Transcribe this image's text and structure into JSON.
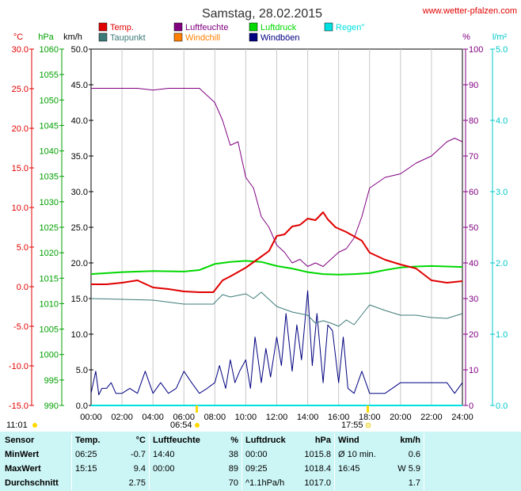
{
  "title": "Samstag, 28.02.2015",
  "website": "www.wetter-pfalzen.com",
  "colors": {
    "temp": "#e00000",
    "dewpoint": "#3c7a78",
    "humidity": "#800080",
    "windchill": "#ff8000",
    "pressure": "#00d800",
    "gusts": "#000080",
    "rain": "#00e0e0",
    "background": "#ffffff",
    "grid": "#c8c8c8",
    "stats_bg": "#ccf5f5"
  },
  "legend": [
    {
      "label": "Temp.",
      "color": "#e00000"
    },
    {
      "label": "Luftfeuchte",
      "color": "#800080"
    },
    {
      "label": "Luftdruck",
      "color": "#00d800"
    },
    {
      "label": "Regen\"",
      "color": "#00e0e0"
    },
    {
      "label": "Taupunkt",
      "color": "#3c7a78"
    },
    {
      "label": "Windchill",
      "color": "#ff8000"
    },
    {
      "label": "Windböen",
      "color": "#000080"
    }
  ],
  "axis_units": {
    "temp": "°C",
    "pressure": "hPa",
    "wind": "km/h",
    "humidity": "%",
    "rain": "l/m²"
  },
  "sun": {
    "sunrise": "06:54",
    "sunset": "17:55",
    "daylength": "11:01"
  },
  "chart_data": {
    "type": "line",
    "title": "Samstag, 28.02.2015",
    "x_ticks": [
      "00:00",
      "02:00",
      "04:00",
      "06:00",
      "08:00",
      "10:00",
      "12:00",
      "14:00",
      "16:00",
      "18:00",
      "20:00",
      "22:00",
      "24:00"
    ],
    "axes": {
      "temp": {
        "label": "°C",
        "ylim": [
          -15,
          30
        ],
        "ticks": [
          "30.0",
          "25.0",
          "20.0",
          "15.0",
          "10.0",
          "5.0",
          "0.0",
          "-5.0",
          "-10.0",
          "-15.0"
        ]
      },
      "pressure": {
        "label": "hPa",
        "ylim": [
          990,
          1060
        ],
        "ticks": [
          "1060",
          "1055",
          "1050",
          "1045",
          "1040",
          "1035",
          "1030",
          "1025",
          "1020",
          "1015",
          "1010",
          "1005",
          "1000",
          "995",
          "990"
        ]
      },
      "wind": {
        "label": "km/h",
        "ylim": [
          0,
          50
        ],
        "ticks": [
          "50.0",
          "45.0",
          "40.0",
          "35.0",
          "30.0",
          "25.0",
          "20.0",
          "15.0",
          "10.0",
          "5.0",
          "0.0"
        ]
      },
      "humidity": {
        "label": "%",
        "ylim": [
          0,
          100
        ],
        "ticks": [
          "100",
          "90",
          "80",
          "70",
          "60",
          "50",
          "40",
          "30",
          "20",
          "10",
          "0"
        ]
      },
      "rain": {
        "label": "l/m²",
        "ylim": [
          0,
          5
        ],
        "ticks": [
          "5.0",
          "4.0",
          "3.0",
          "2.0",
          "1.0",
          "0.0"
        ]
      }
    },
    "series": [
      {
        "name": "Temp.",
        "axis": "temp",
        "x": [
          0,
          1,
          2,
          3,
          4,
          5,
          6,
          7,
          7.9,
          8.5,
          9,
          10,
          11,
          11.5,
          12,
          12.5,
          13,
          13.5,
          14,
          14.5,
          15,
          15.3,
          15.8,
          16.5,
          17.5,
          18,
          19,
          20,
          21,
          22,
          23,
          24
        ],
        "y": [
          0.3,
          0.3,
          0.5,
          0.8,
          -0.1,
          -0.3,
          -0.6,
          -0.7,
          -0.7,
          0.8,
          1.3,
          2.4,
          3.8,
          4.5,
          6.4,
          6.6,
          7.6,
          7.8,
          8.6,
          8.4,
          9.4,
          8.5,
          7.5,
          6.9,
          5.8,
          4.3,
          3.4,
          2.8,
          2.3,
          0.8,
          0.5,
          0.7
        ]
      },
      {
        "name": "Taupunkt",
        "axis": "temp",
        "x": [
          0,
          2,
          4,
          6,
          7.9,
          8.5,
          9,
          10,
          10.5,
          11,
          12,
          13,
          14,
          14.5,
          15,
          15.5,
          16,
          16.5,
          17,
          18,
          19,
          20,
          21,
          22,
          23,
          24
        ],
        "y": [
          -1.5,
          -1.6,
          -1.7,
          -2.2,
          -2.2,
          -1.0,
          -1.3,
          -0.9,
          -1.5,
          -0.7,
          -2.5,
          -3.2,
          -3.6,
          -4.6,
          -4.3,
          -4.6,
          -5.0,
          -4.2,
          -4.8,
          -2.3,
          -3.0,
          -3.6,
          -3.6,
          -3.9,
          -4.0,
          -3.4
        ]
      },
      {
        "name": "Luftfeuchte",
        "axis": "humidity",
        "x": [
          0,
          1,
          2,
          3,
          4,
          5,
          6,
          7,
          8,
          8.5,
          9,
          9.5,
          10,
          10.5,
          11,
          11.5,
          12,
          12.5,
          13,
          13.5,
          14,
          14.5,
          15,
          15.5,
          16,
          16.5,
          17,
          17.5,
          18,
          19,
          20,
          21,
          22,
          23,
          23.5,
          24
        ],
        "y": [
          89,
          89,
          89,
          89,
          88.5,
          89,
          89,
          89,
          85,
          80,
          73,
          74,
          64,
          61,
          53,
          50,
          45,
          43,
          40,
          41,
          39,
          40,
          39,
          41,
          43,
          44,
          47,
          53,
          61,
          64,
          65,
          68,
          70,
          74,
          75,
          74
        ]
      },
      {
        "name": "Luftdruck",
        "axis": "pressure",
        "x": [
          0,
          2,
          4,
          6,
          7,
          8,
          9,
          10,
          11,
          12,
          13,
          14,
          15,
          16,
          17,
          18,
          19,
          20,
          21,
          22,
          23,
          24
        ],
        "y": [
          1015.8,
          1016.2,
          1016.4,
          1016.3,
          1016.6,
          1017.8,
          1018.2,
          1018.4,
          1018.2,
          1017.4,
          1016.9,
          1016.2,
          1015.8,
          1015.7,
          1015.8,
          1016.0,
          1016.6,
          1017.1,
          1017.3,
          1017.4,
          1017.3,
          1017.2
        ]
      },
      {
        "name": "Windböen",
        "axis": "wind",
        "x": [
          0,
          0.3,
          0.5,
          0.7,
          1,
          1.3,
          1.6,
          2,
          2.5,
          3,
          3.5,
          4,
          4.5,
          5,
          5.5,
          6,
          6.5,
          7,
          7.5,
          8,
          8.3,
          8.7,
          9,
          9.3,
          9.6,
          10,
          10.3,
          10.6,
          11,
          11.3,
          11.6,
          12,
          12.3,
          12.6,
          13,
          13.3,
          13.6,
          14,
          14.3,
          14.6,
          15,
          15.3,
          15.6,
          16,
          16.3,
          16.6,
          17,
          17.5,
          18,
          19,
          20,
          21,
          22,
          23,
          23.5,
          24
        ],
        "y": [
          1.7,
          4.8,
          1.5,
          2.4,
          2.4,
          3.2,
          1.7,
          1.7,
          2.4,
          1.7,
          4.8,
          1.7,
          3.2,
          1.7,
          2.4,
          4.8,
          3.2,
          1.7,
          2.4,
          3.2,
          5.6,
          2.4,
          6.4,
          3.2,
          4.8,
          6.4,
          2.4,
          9.6,
          3.2,
          8.0,
          4.0,
          9.6,
          5.6,
          12.9,
          4.8,
          11.3,
          6.4,
          16.1,
          5.6,
          12.9,
          3.2,
          11.3,
          10.5,
          3.2,
          9.6,
          2.4,
          1.7,
          4.8,
          1.7,
          1.7,
          3.2,
          3.2,
          3.2,
          3.2,
          1.7,
          3.2
        ]
      },
      {
        "name": "Regen\"",
        "axis": "rain",
        "x": [
          0,
          24
        ],
        "y": [
          0,
          0
        ]
      }
    ]
  },
  "stats": {
    "headers": [
      "Sensor",
      "Temp.",
      "°C",
      "Luftfeuchte",
      "%",
      "Luftdruck",
      "hPa",
      "Wind",
      "km/h"
    ],
    "rows": [
      {
        "label": "MinWert",
        "t_time": "06:25",
        "t_val": "-0.7",
        "h_time": "14:40",
        "h_val": "38",
        "p_time": "00:00",
        "p_val": "1015.8",
        "w_time": "Ø 10 min.",
        "w_val": "0.6"
      },
      {
        "label": "MaxWert",
        "t_time": "15:15",
        "t_val": "9.4",
        "h_time": "00:00",
        "h_val": "89",
        "p_time": "09:25",
        "p_val": "1018.4",
        "w_time": "16:45",
        "w_val": "W 5.9"
      },
      {
        "label": "Durchschnitt",
        "t_time": "",
        "t_val": "2.75",
        "h_time": "",
        "h_val": "70",
        "p_time": "^1.1hPa/h",
        "p_val": "1017.0",
        "w_time": "",
        "w_val": "1.7"
      }
    ]
  }
}
